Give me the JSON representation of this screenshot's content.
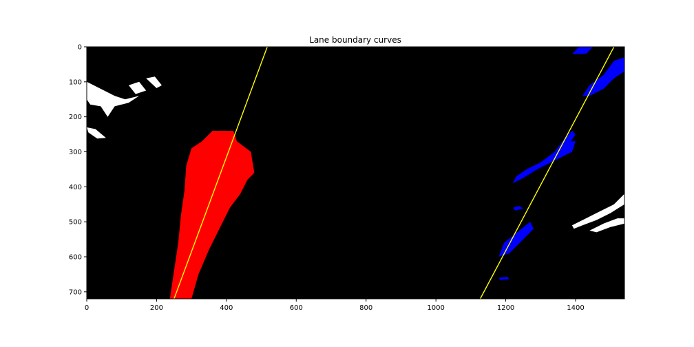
{
  "chart_data": {
    "type": "line",
    "title": "Lane boundary curves",
    "xlabel": "",
    "ylabel": "",
    "xlim": [
      0,
      1540
    ],
    "ylim": [
      720,
      0
    ],
    "y_inverted": true,
    "background": "#000000",
    "x_ticks": [
      0,
      200,
      400,
      600,
      800,
      1000,
      1200,
      1400
    ],
    "x_tick_labels": [
      "0",
      "200",
      "400",
      "600",
      "800",
      "1000",
      "1200",
      "1400"
    ],
    "y_ticks": [
      0,
      100,
      200,
      300,
      400,
      500,
      600,
      700
    ],
    "y_tick_labels": [
      "0",
      "100",
      "200",
      "300",
      "400",
      "500",
      "600",
      "700"
    ],
    "grid": false,
    "legend": false,
    "series": [
      {
        "color": "#ffff00",
        "x": [
          517,
          250
        ],
        "y": [
          0,
          720
        ]
      },
      {
        "color": "#ffff00",
        "x": [
          1510,
          1127
        ],
        "y": [
          0,
          720
        ]
      }
    ],
    "pixel_regions": [
      {
        "color": "#ff0000",
        "polygon": [
          [
            238,
            720
          ],
          [
            250,
            640
          ],
          [
            262,
            560
          ],
          [
            270,
            480
          ],
          [
            280,
            410
          ],
          [
            285,
            340
          ],
          [
            300,
            290
          ],
          [
            330,
            270
          ],
          [
            360,
            240
          ],
          [
            420,
            240
          ],
          [
            430,
            270
          ],
          [
            470,
            300
          ],
          [
            480,
            360
          ],
          [
            460,
            380
          ],
          [
            440,
            420
          ],
          [
            410,
            460
          ],
          [
            380,
            520
          ],
          [
            350,
            580
          ],
          [
            320,
            650
          ],
          [
            300,
            720
          ]
        ]
      },
      {
        "color": "#0000ff",
        "polygon": [
          [
            1180,
            600
          ],
          [
            1195,
            560
          ],
          [
            1220,
            540
          ],
          [
            1270,
            500
          ],
          [
            1280,
            520
          ],
          [
            1240,
            560
          ],
          [
            1210,
            590
          ]
        ]
      },
      {
        "color": "#0000ff",
        "polygon": [
          [
            1220,
            390
          ],
          [
            1230,
            370
          ],
          [
            1260,
            350
          ],
          [
            1300,
            330
          ],
          [
            1340,
            300
          ],
          [
            1380,
            270
          ],
          [
            1400,
            270
          ],
          [
            1390,
            300
          ],
          [
            1330,
            330
          ],
          [
            1290,
            350
          ],
          [
            1250,
            375
          ]
        ]
      },
      {
        "color": "#0000ff",
        "polygon": [
          [
            1340,
            300
          ],
          [
            1370,
            260
          ],
          [
            1390,
            240
          ],
          [
            1400,
            250
          ],
          [
            1380,
            280
          ],
          [
            1350,
            305
          ]
        ]
      },
      {
        "color": "#0000ff",
        "polygon": [
          [
            1420,
            140
          ],
          [
            1440,
            110
          ],
          [
            1480,
            80
          ],
          [
            1510,
            40
          ],
          [
            1540,
            30
          ],
          [
            1540,
            70
          ],
          [
            1510,
            90
          ],
          [
            1480,
            120
          ],
          [
            1440,
            140
          ]
        ]
      },
      {
        "color": "#0000ff",
        "polygon": [
          [
            1390,
            20
          ],
          [
            1410,
            0
          ],
          [
            1450,
            0
          ],
          [
            1430,
            20
          ]
        ]
      },
      {
        "color": "#0000ff",
        "polygon": [
          [
            1220,
            460
          ],
          [
            1240,
            455
          ],
          [
            1250,
            462
          ],
          [
            1228,
            468
          ]
        ]
      },
      {
        "color": "#0000ff",
        "polygon": [
          [
            1180,
            660
          ],
          [
            1205,
            657
          ],
          [
            1210,
            664
          ],
          [
            1183,
            666
          ]
        ]
      },
      {
        "color": "#ffffff",
        "polygon": [
          [
            0,
            100
          ],
          [
            40,
            120
          ],
          [
            80,
            140
          ],
          [
            110,
            150
          ],
          [
            150,
            140
          ],
          [
            120,
            160
          ],
          [
            80,
            170
          ],
          [
            60,
            200
          ],
          [
            40,
            170
          ],
          [
            10,
            165
          ],
          [
            0,
            150
          ]
        ]
      },
      {
        "color": "#ffffff",
        "polygon": [
          [
            120,
            110
          ],
          [
            150,
            100
          ],
          [
            170,
            125
          ],
          [
            140,
            135
          ]
        ]
      },
      {
        "color": "#ffffff",
        "polygon": [
          [
            170,
            90
          ],
          [
            195,
            85
          ],
          [
            215,
            110
          ],
          [
            200,
            118
          ]
        ]
      },
      {
        "color": "#ffffff",
        "polygon": [
          [
            0,
            230
          ],
          [
            25,
            235
          ],
          [
            55,
            260
          ],
          [
            30,
            262
          ],
          [
            5,
            245
          ]
        ]
      },
      {
        "color": "#ffffff",
        "polygon": [
          [
            1390,
            510
          ],
          [
            1430,
            490
          ],
          [
            1470,
            470
          ],
          [
            1510,
            450
          ],
          [
            1540,
            420
          ],
          [
            1540,
            450
          ],
          [
            1500,
            475
          ],
          [
            1460,
            495
          ],
          [
            1420,
            510
          ],
          [
            1395,
            520
          ]
        ]
      },
      {
        "color": "#ffffff",
        "polygon": [
          [
            1440,
            525
          ],
          [
            1480,
            505
          ],
          [
            1520,
            490
          ],
          [
            1540,
            490
          ],
          [
            1540,
            505
          ],
          [
            1500,
            515
          ],
          [
            1460,
            530
          ]
        ]
      }
    ]
  }
}
